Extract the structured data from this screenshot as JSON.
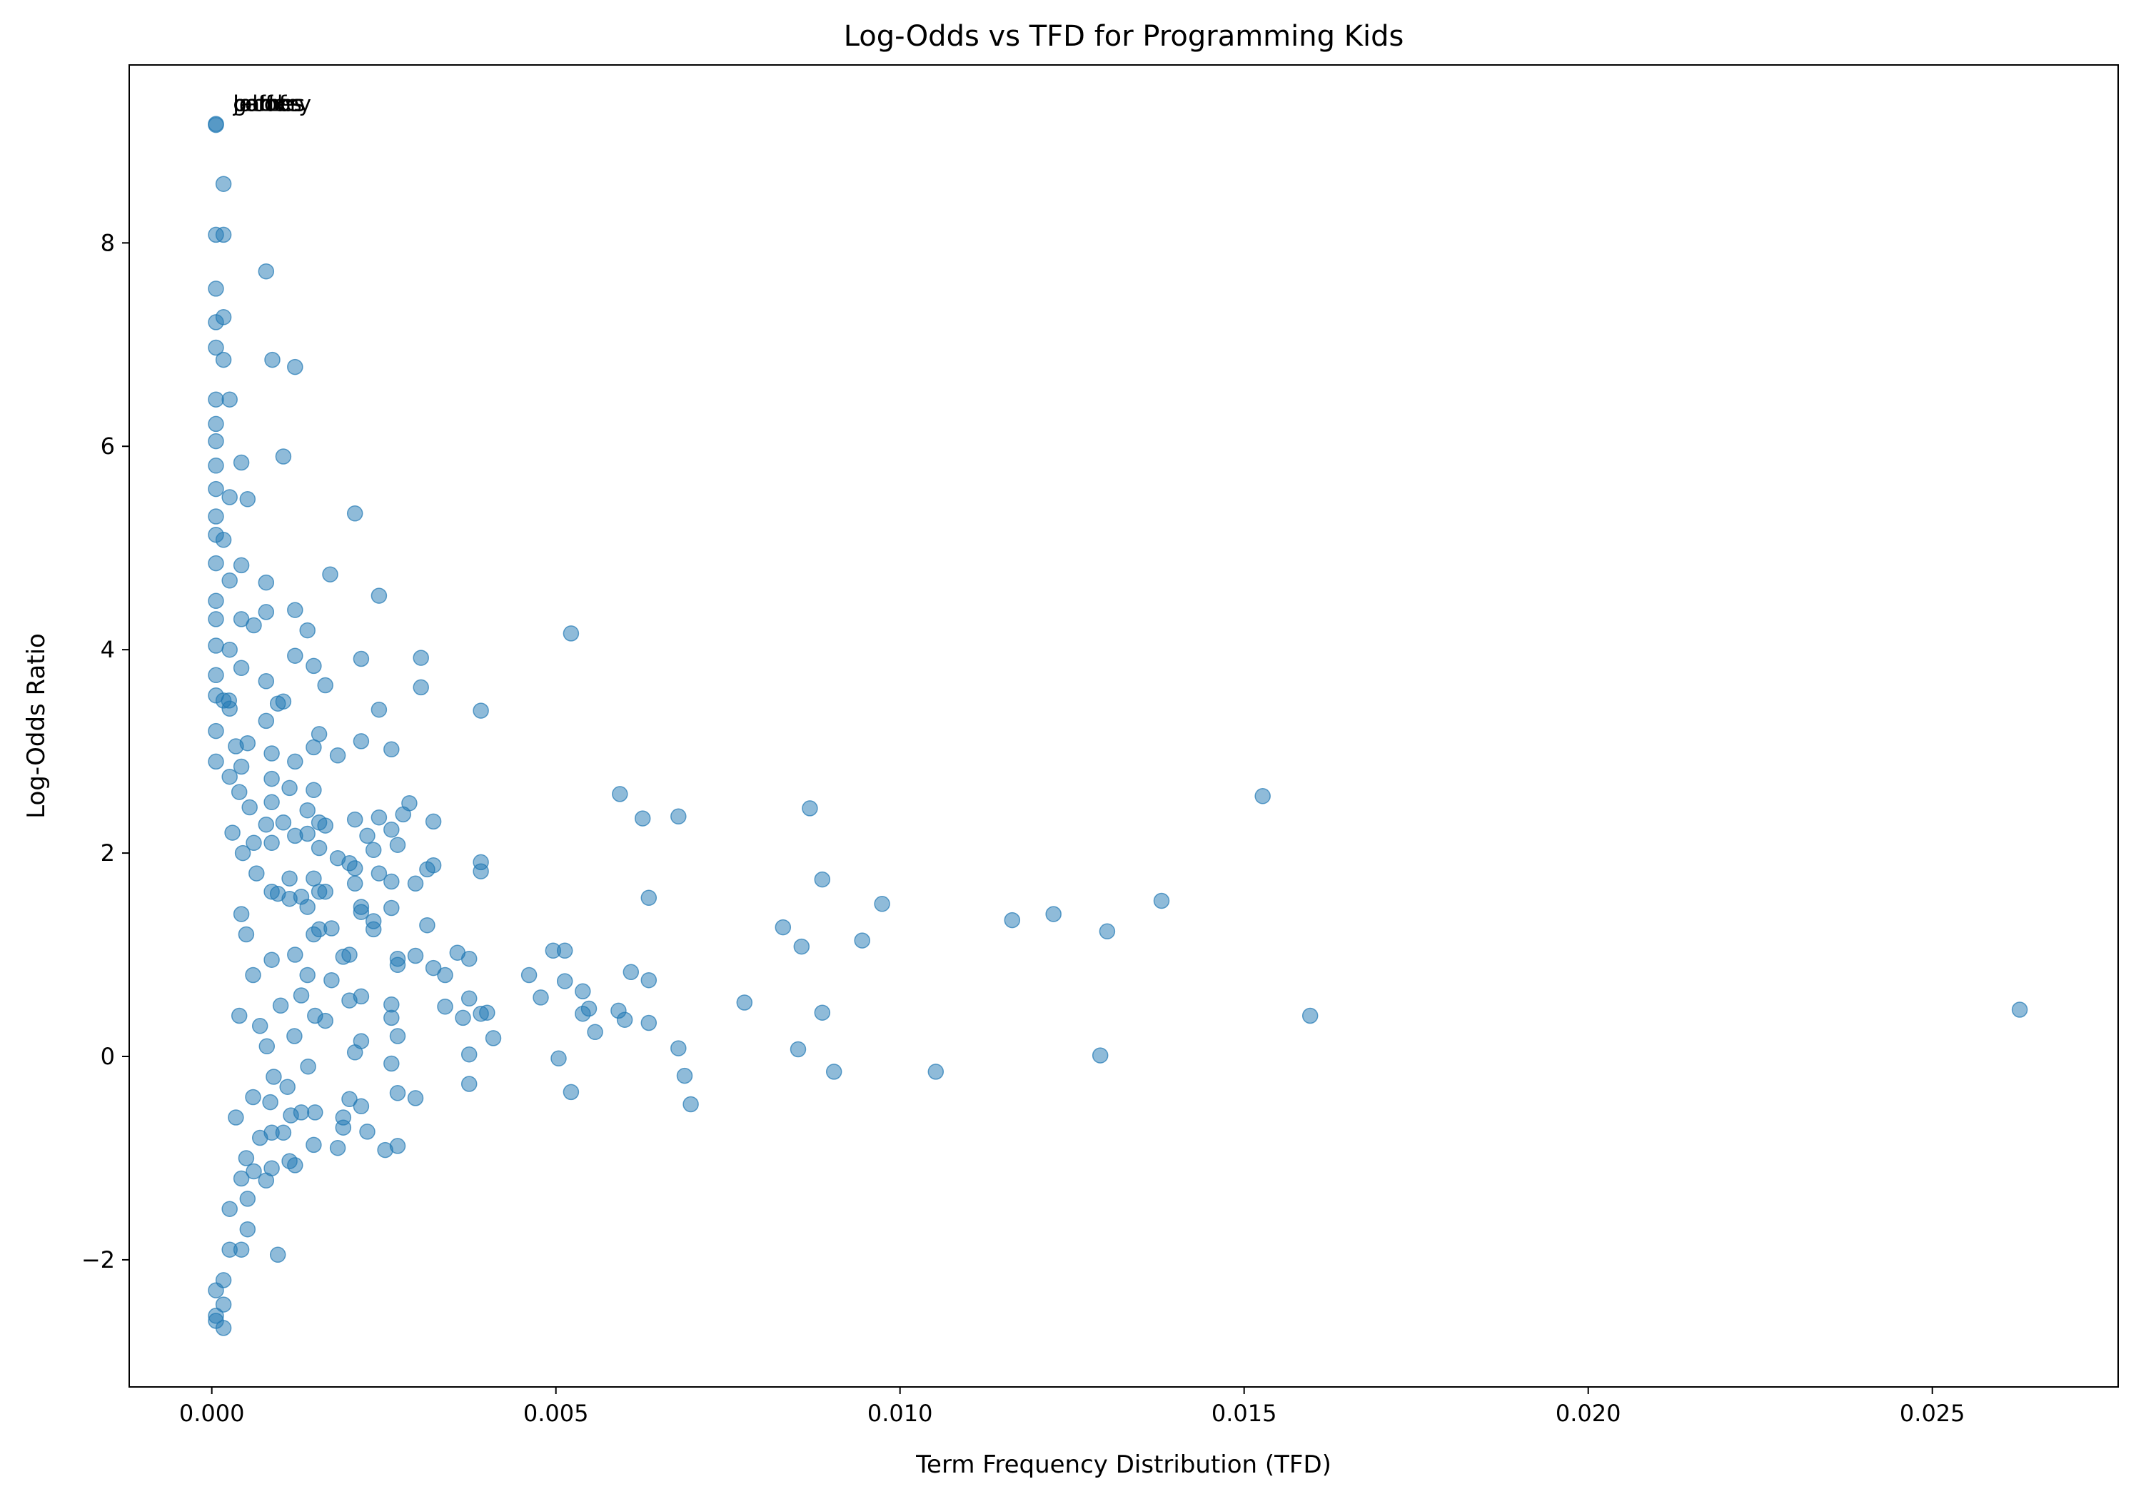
{
  "chart_data": {
    "type": "scatter",
    "title": "Log-Odds vs TFD for Programming Kids",
    "xlabel": "Term Frequency Distribution (TFD)",
    "ylabel": "Log-Odds Ratio",
    "xlim": [
      -0.0012,
      0.0277
    ],
    "ylim": [
      -3.25,
      9.75
    ],
    "xticks": [
      0.0,
      0.005,
      0.01,
      0.015,
      0.02,
      0.025
    ],
    "xtick_labels": [
      "0.000",
      "0.005",
      "0.010",
      "0.015",
      "0.020",
      "0.025"
    ],
    "yticks": [
      -2,
      0,
      2,
      4,
      6,
      8
    ],
    "ytick_labels": [
      "−2",
      "0",
      "2",
      "4",
      "6",
      "8"
    ],
    "grid": false,
    "color": "#1f77b4",
    "annotations": [
      {
        "text": "lolmf",
        "x": 6e-05,
        "y": 9.17
      },
      {
        "text": "coffee",
        "x": 6e-05,
        "y": 9.17
      },
      {
        "text": "battery",
        "x": 6e-05,
        "y": 9.17
      },
      {
        "text": "games",
        "x": 6e-05,
        "y": 9.17
      },
      {
        "text": "jacobs",
        "x": 6e-05,
        "y": 9.17
      }
    ],
    "points": [
      [
        6e-05,
        9.17
      ],
      [
        6e-05,
        9.16
      ],
      [
        0.00017,
        8.58
      ],
      [
        6e-05,
        8.08
      ],
      [
        0.00017,
        8.08
      ],
      [
        6e-05,
        7.55
      ],
      [
        0.00079,
        7.72
      ],
      [
        6e-05,
        7.22
      ],
      [
        0.00017,
        7.27
      ],
      [
        6e-05,
        6.97
      ],
      [
        0.00017,
        6.85
      ],
      [
        0.00088,
        6.85
      ],
      [
        0.00121,
        6.78
      ],
      [
        6e-05,
        6.46
      ],
      [
        0.00026,
        6.46
      ],
      [
        6e-05,
        6.22
      ],
      [
        6e-05,
        6.05
      ],
      [
        0.00104,
        5.9
      ],
      [
        0.00043,
        5.84
      ],
      [
        6e-05,
        5.81
      ],
      [
        6e-05,
        5.58
      ],
      [
        0.00026,
        5.5
      ],
      [
        0.00052,
        5.48
      ],
      [
        6e-05,
        5.31
      ],
      [
        0.00208,
        5.34
      ],
      [
        6e-05,
        5.13
      ],
      [
        0.00017,
        5.08
      ],
      [
        6e-05,
        4.85
      ],
      [
        0.00043,
        4.83
      ],
      [
        0.00026,
        4.68
      ],
      [
        0.00079,
        4.66
      ],
      [
        0.00172,
        4.74
      ],
      [
        0.00243,
        4.53
      ],
      [
        6e-05,
        4.48
      ],
      [
        6e-05,
        4.3
      ],
      [
        0.00043,
        4.3
      ],
      [
        0.00121,
        4.39
      ],
      [
        0.00079,
        4.37
      ],
      [
        0.00061,
        4.24
      ],
      [
        0.00139,
        4.19
      ],
      [
        0.00522,
        4.16
      ],
      [
        6e-05,
        4.04
      ],
      [
        0.00026,
        4.0
      ],
      [
        0.00217,
        3.91
      ],
      [
        0.00304,
        3.92
      ],
      [
        0.00121,
        3.94
      ],
      [
        0.00148,
        3.84
      ],
      [
        0.00043,
        3.82
      ],
      [
        6e-05,
        3.75
      ],
      [
        0.00079,
        3.69
      ],
      [
        0.00165,
        3.65
      ],
      [
        0.00304,
        3.63
      ],
      [
        6e-05,
        3.55
      ],
      [
        0.00017,
        3.5
      ],
      [
        0.00096,
        3.47
      ],
      [
        0.00104,
        3.49
      ],
      [
        0.00026,
        3.42
      ],
      [
        0.00243,
        3.41
      ],
      [
        0.00391,
        3.4
      ],
      [
        0.00079,
        3.3
      ],
      [
        6e-05,
        3.2
      ],
      [
        0.00156,
        3.17
      ],
      [
        0.00217,
        3.1
      ],
      [
        0.00052,
        3.08
      ],
      [
        0.00148,
        3.04
      ],
      [
        0.00261,
        3.02
      ],
      [
        0.00087,
        2.98
      ],
      [
        0.00183,
        2.96
      ],
      [
        6e-05,
        2.9
      ],
      [
        0.00121,
        2.9
      ],
      [
        0.00043,
        2.85
      ],
      [
        0.00026,
        2.75
      ],
      [
        0.00087,
        2.73
      ],
      [
        0.00113,
        2.64
      ],
      [
        0.00148,
        2.62
      ],
      [
        0.00593,
        2.58
      ],
      [
        0.01527,
        2.56
      ],
      [
        0.00287,
        2.49
      ],
      [
        0.00869,
        2.44
      ],
      [
        0.00087,
        2.5
      ],
      [
        0.00139,
        2.42
      ],
      [
        0.00278,
        2.38
      ],
      [
        0.00626,
        2.34
      ],
      [
        0.00678,
        2.36
      ],
      [
        0.00243,
        2.35
      ],
      [
        0.00208,
        2.33
      ],
      [
        0.00322,
        2.31
      ],
      [
        0.00156,
        2.3
      ],
      [
        0.00079,
        2.28
      ],
      [
        0.00104,
        2.3
      ],
      [
        0.00261,
        2.23
      ],
      [
        0.00165,
        2.27
      ],
      [
        0.00226,
        2.17
      ],
      [
        0.00121,
        2.17
      ],
      [
        0.00139,
        2.19
      ],
      [
        0.00235,
        2.03
      ],
      [
        0.00087,
        2.1
      ],
      [
        0.00156,
        2.05
      ],
      [
        0.0027,
        2.08
      ],
      [
        0.00061,
        2.1
      ],
      [
        0.00183,
        1.95
      ],
      [
        0.002,
        1.9
      ],
      [
        0.00391,
        1.91
      ],
      [
        0.00322,
        1.88
      ],
      [
        0.00313,
        1.84
      ],
      [
        0.00391,
        1.82
      ],
      [
        0.00208,
        1.85
      ],
      [
        0.00243,
        1.8
      ],
      [
        0.00887,
        1.74
      ],
      [
        0.00113,
        1.75
      ],
      [
        0.00148,
        1.75
      ],
      [
        0.00296,
        1.7
      ],
      [
        0.00261,
        1.72
      ],
      [
        0.00208,
        1.7
      ],
      [
        0.00165,
        1.62
      ],
      [
        0.00096,
        1.6
      ],
      [
        0.0013,
        1.57
      ],
      [
        0.00635,
        1.56
      ],
      [
        0.0138,
        1.53
      ],
      [
        0.00974,
        1.5
      ],
      [
        0.00217,
        1.47
      ],
      [
        0.00261,
        1.46
      ],
      [
        0.00139,
        1.47
      ],
      [
        0.00217,
        1.42
      ],
      [
        0.01223,
        1.4
      ],
      [
        0.01163,
        1.34
      ],
      [
        0.00235,
        1.33
      ],
      [
        0.00313,
        1.29
      ],
      [
        0.0083,
        1.27
      ],
      [
        0.01301,
        1.23
      ],
      [
        0.00156,
        1.25
      ],
      [
        0.00174,
        1.26
      ],
      [
        0.00235,
        1.25
      ],
      [
        0.00945,
        1.14
      ],
      [
        0.00857,
        1.08
      ],
      [
        0.00496,
        1.04
      ],
      [
        0.00513,
        1.04
      ],
      [
        0.00357,
        1.02
      ],
      [
        0.00296,
        0.99
      ],
      [
        0.00374,
        0.96
      ],
      [
        0.0027,
        0.96
      ],
      [
        0.00191,
        0.98
      ],
      [
        0.002,
        1.0
      ],
      [
        0.00322,
        0.87
      ],
      [
        0.0027,
        0.9
      ],
      [
        0.00339,
        0.8
      ],
      [
        0.00461,
        0.8
      ],
      [
        0.00609,
        0.83
      ],
      [
        0.00513,
        0.74
      ],
      [
        0.00635,
        0.75
      ],
      [
        0.00539,
        0.64
      ],
      [
        0.00478,
        0.58
      ],
      [
        0.00374,
        0.57
      ],
      [
        0.00774,
        0.53
      ],
      [
        0.002,
        0.55
      ],
      [
        0.00217,
        0.59
      ],
      [
        0.00261,
        0.51
      ],
      [
        0.00339,
        0.49
      ],
      [
        0.00548,
        0.47
      ],
      [
        0.00591,
        0.45
      ],
      [
        0.00887,
        0.43
      ],
      [
        0.004,
        0.43
      ],
      [
        0.00391,
        0.42
      ],
      [
        0.00539,
        0.42
      ],
      [
        0.02627,
        0.46
      ],
      [
        0.01596,
        0.4
      ],
      [
        0.00365,
        0.38
      ],
      [
        0.00261,
        0.38
      ],
      [
        0.006,
        0.36
      ],
      [
        0.00635,
        0.33
      ],
      [
        0.00557,
        0.24
      ],
      [
        0.00409,
        0.18
      ],
      [
        0.0027,
        0.2
      ],
      [
        0.00217,
        0.15
      ],
      [
        0.00678,
        0.08
      ],
      [
        0.00852,
        0.07
      ],
      [
        0.00374,
        0.02
      ],
      [
        0.00208,
        0.04
      ],
      [
        0.01291,
        0.01
      ],
      [
        0.00504,
        -0.02
      ],
      [
        0.00261,
        -0.07
      ],
      [
        0.00904,
        -0.15
      ],
      [
        0.01052,
        -0.15
      ],
      [
        0.00687,
        -0.19
      ],
      [
        0.00374,
        -0.27
      ],
      [
        0.0027,
        -0.36
      ],
      [
        0.00522,
        -0.35
      ],
      [
        0.00296,
        -0.41
      ],
      [
        0.002,
        -0.42
      ],
      [
        0.00696,
        -0.47
      ],
      [
        0.00217,
        -0.49
      ],
      [
        0.00191,
        -0.6
      ],
      [
        0.00226,
        -0.74
      ],
      [
        0.00191,
        -0.7
      ],
      [
        0.00148,
        -0.87
      ],
      [
        0.00183,
        -0.9
      ],
      [
        0.0027,
        -0.88
      ],
      [
        0.00252,
        -0.92
      ],
      [
        0.00087,
        -0.75
      ],
      [
        0.00104,
        -0.75
      ],
      [
        0.00113,
        -1.03
      ],
      [
        0.00121,
        -1.07
      ],
      [
        0.00087,
        -1.1
      ],
      [
        0.00061,
        -1.13
      ],
      [
        0.00043,
        -1.2
      ],
      [
        0.00079,
        -1.22
      ],
      [
        0.00052,
        -1.4
      ],
      [
        0.00026,
        -1.5
      ],
      [
        0.00052,
        -1.7
      ],
      [
        0.00096,
        -1.95
      ],
      [
        0.00026,
        -1.9
      ],
      [
        0.00043,
        -1.9
      ],
      [
        0.00017,
        -2.2
      ],
      [
        6e-05,
        -2.3
      ],
      [
        0.00017,
        -2.44
      ],
      [
        6e-05,
        -2.55
      ],
      [
        0.00017,
        -2.67
      ],
      [
        6e-05,
        -2.6
      ],
      [
        0.00156,
        1.62
      ],
      [
        0.00087,
        1.62
      ],
      [
        0.00113,
        1.55
      ],
      [
        0.00043,
        1.4
      ],
      [
        0.00148,
        1.2
      ],
      [
        0.00121,
        1.0
      ],
      [
        0.00087,
        0.95
      ],
      [
        0.00139,
        0.8
      ],
      [
        0.00174,
        0.75
      ],
      [
        0.0013,
        0.6
      ],
      [
        0.001,
        0.5
      ],
      [
        0.0015,
        0.4
      ],
      [
        0.0007,
        0.3
      ],
      [
        0.0012,
        0.2
      ],
      [
        0.00165,
        0.35
      ],
      [
        0.0008,
        0.1
      ],
      [
        0.0014,
        -0.1
      ],
      [
        0.0009,
        -0.2
      ],
      [
        0.0011,
        -0.3
      ],
      [
        0.0006,
        -0.4
      ],
      [
        0.0015,
        -0.55
      ],
      [
        0.0013,
        -0.55
      ],
      [
        0.00115,
        -0.58
      ],
      [
        0.00085,
        -0.45
      ],
      [
        0.0007,
        -0.8
      ],
      [
        0.0005,
        -1.0
      ],
      [
        0.00035,
        -0.6
      ],
      [
        0.00045,
        2.0
      ],
      [
        0.0003,
        2.2
      ],
      [
        0.00055,
        2.45
      ],
      [
        0.0004,
        2.6
      ],
      [
        0.00065,
        1.8
      ],
      [
        0.00035,
        3.05
      ],
      [
        0.00025,
        3.5
      ],
      [
        0.0005,
        1.2
      ],
      [
        0.0006,
        0.8
      ],
      [
        0.0004,
        0.4
      ]
    ]
  }
}
